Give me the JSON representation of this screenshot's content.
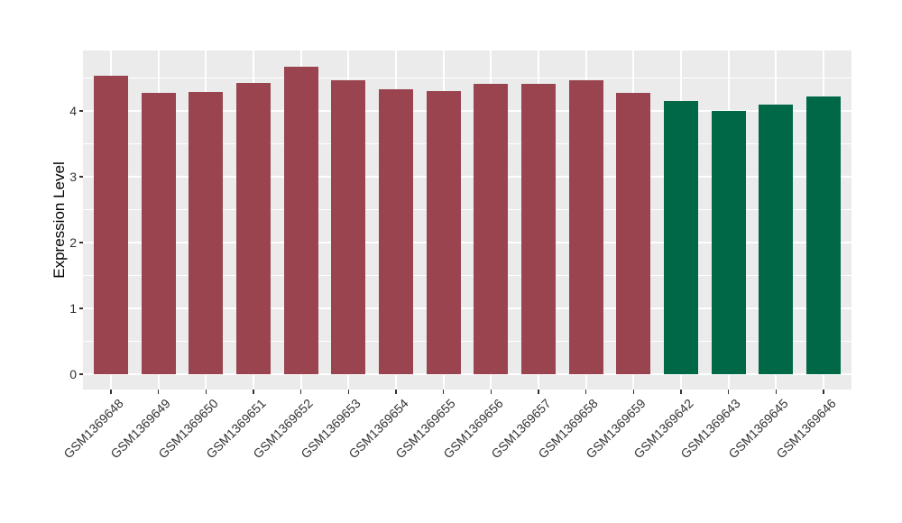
{
  "figure": {
    "background": "#FFFFFF",
    "panel_background": "#EBEBEB",
    "gridline_color": "#FFFFFF",
    "axis_text_color": "#333333",
    "axis_title_color": "#000000",
    "tick_mark_color": "#333333",
    "bar_color_red": "#9A4450",
    "bar_color_green": "#006747"
  },
  "chart_data": {
    "type": "bar",
    "title": "",
    "xlabel": "",
    "ylabel": "Expression Level",
    "legend": "none",
    "grid": "on",
    "x_tick_rotation_deg": 45,
    "ylim": [
      -0.23,
      4.92
    ],
    "yticks": [
      0,
      1,
      2,
      3,
      4
    ],
    "yticks_minor": [
      0.5,
      1.5,
      2.5,
      3.5,
      4.5
    ],
    "categories": [
      "GSM1369648",
      "GSM1369649",
      "GSM1369650",
      "GSM1369651",
      "GSM1369652",
      "GSM1369653",
      "GSM1369654",
      "GSM1369655",
      "GSM1369656",
      "GSM1369657",
      "GSM1369658",
      "GSM1369659",
      "GSM1369642",
      "GSM1369643",
      "GSM1369645",
      "GSM1369646"
    ],
    "values": [
      4.53,
      4.27,
      4.29,
      4.42,
      4.67,
      4.46,
      4.33,
      4.3,
      4.41,
      4.41,
      4.46,
      4.28,
      4.15,
      4.0,
      4.1,
      4.22
    ],
    "bar_colors": [
      "#9A4450",
      "#9A4450",
      "#9A4450",
      "#9A4450",
      "#9A4450",
      "#9A4450",
      "#9A4450",
      "#9A4450",
      "#9A4450",
      "#9A4450",
      "#9A4450",
      "#9A4450",
      "#006747",
      "#006747",
      "#006747",
      "#006747"
    ]
  }
}
